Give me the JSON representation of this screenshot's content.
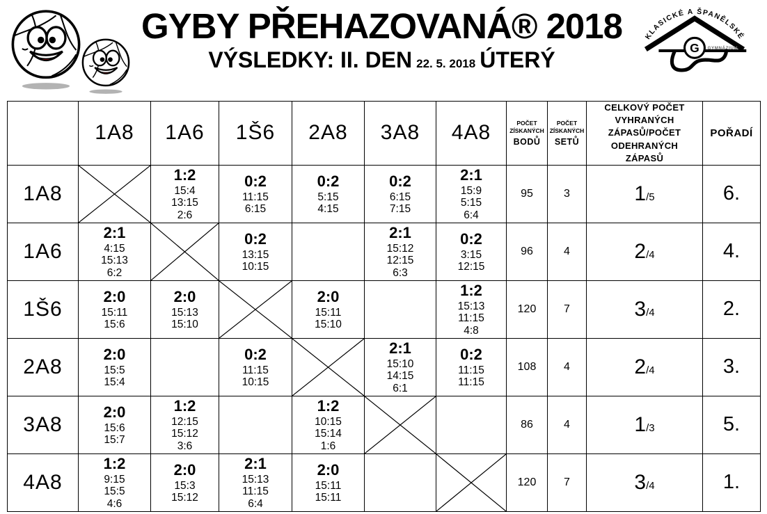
{
  "header": {
    "title": "GYBY PŘEHAZOVANÁ® 2018",
    "subtitle": {
      "results": "VÝSLEDKY: II. DEN",
      "date": "22. 5. 2018",
      "day": "ÚTERÝ"
    },
    "school_logo": {
      "arc_text": "KLASICKÉ A ŠPANĚLSKÉ",
      "monogram": "G",
      "name": "GYMNÁZIUM"
    }
  },
  "colors": {
    "ink": "#000000",
    "tongue_red": "#cc1111",
    "shadow_gray": "#b3b3b3"
  },
  "table": {
    "team_headers": [
      "1A8",
      "1A6",
      "1Š6",
      "2A8",
      "3A8",
      "4A8"
    ],
    "stat_headers": {
      "points_small": "POČET ZÍSKANÝCH",
      "points_big": "BODŮ",
      "sets_small": "POČET ZÍSKANÝCH",
      "sets_big": "SETŮ",
      "total": "CELKOVÝ POČET VYHRANÝCH ZÁPASŮ/POČET ODEHRANÝCH ZÁPASŮ",
      "rank": "POŘADÍ"
    },
    "rows": [
      {
        "team": "1A8",
        "cells": [
          {
            "type": "x"
          },
          {
            "type": "score",
            "r": "1:2",
            "sets": [
              "15:4",
              "13:15",
              "2:6"
            ]
          },
          {
            "type": "score",
            "r": "0:2",
            "sets": [
              "11:15",
              "6:15"
            ]
          },
          {
            "type": "score",
            "r": "0:2",
            "sets": [
              "5:15",
              "4:15"
            ]
          },
          {
            "type": "score",
            "r": "0:2",
            "sets": [
              "6:15",
              "7:15"
            ]
          },
          {
            "type": "score",
            "r": "2:1",
            "sets": [
              "15:9",
              "5:15",
              "6:4"
            ]
          }
        ],
        "points": "95",
        "sets": "3",
        "wins": "1",
        "played": "5",
        "rank": "6."
      },
      {
        "team": "1A6",
        "cells": [
          {
            "type": "score",
            "r": "2:1",
            "sets": [
              "4:15",
              "15:13",
              "6:2"
            ]
          },
          {
            "type": "x"
          },
          {
            "type": "score",
            "r": "0:2",
            "sets": [
              "13:15",
              "10:15"
            ]
          },
          {
            "type": "empty"
          },
          {
            "type": "score",
            "r": "2:1",
            "sets": [
              "15:12",
              "12:15",
              "6:3"
            ]
          },
          {
            "type": "score",
            "r": "0:2",
            "sets": [
              "3:15",
              "12:15"
            ]
          }
        ],
        "points": "96",
        "sets": "4",
        "wins": "2",
        "played": "4",
        "rank": "4."
      },
      {
        "team": "1Š6",
        "cells": [
          {
            "type": "score",
            "r": "2:0",
            "sets": [
              "15:11",
              "15:6"
            ]
          },
          {
            "type": "score",
            "r": "2:0",
            "sets": [
              "15:13",
              "15:10"
            ]
          },
          {
            "type": "x"
          },
          {
            "type": "score",
            "r": "2:0",
            "sets": [
              "15:11",
              "15:10"
            ]
          },
          {
            "type": "empty"
          },
          {
            "type": "score",
            "r": "1:2",
            "sets": [
              "15:13",
              "11:15",
              "4:8"
            ]
          }
        ],
        "points": "120",
        "sets": "7",
        "wins": "3",
        "played": "4",
        "rank": "2."
      },
      {
        "team": "2A8",
        "cells": [
          {
            "type": "score",
            "r": "2:0",
            "sets": [
              "15:5",
              "15:4"
            ]
          },
          {
            "type": "empty"
          },
          {
            "type": "score",
            "r": "0:2",
            "sets": [
              "11:15",
              "10:15"
            ]
          },
          {
            "type": "x"
          },
          {
            "type": "score",
            "r": "2:1",
            "sets": [
              "15:10",
              "14:15",
              "6:1"
            ]
          },
          {
            "type": "score",
            "r": "0:2",
            "sets": [
              "11:15",
              "11:15"
            ]
          }
        ],
        "points": "108",
        "sets": "4",
        "wins": "2",
        "played": "4",
        "rank": "3."
      },
      {
        "team": "3A8",
        "cells": [
          {
            "type": "score",
            "r": "2:0",
            "sets": [
              "15:6",
              "15:7"
            ]
          },
          {
            "type": "score",
            "r": "1:2",
            "sets": [
              "12:15",
              "15:12",
              "3:6"
            ]
          },
          {
            "type": "empty"
          },
          {
            "type": "score",
            "r": "1:2",
            "sets": [
              "10:15",
              "15:14",
              "1:6"
            ]
          },
          {
            "type": "x"
          },
          {
            "type": "empty"
          }
        ],
        "points": "86",
        "sets": "4",
        "wins": "1",
        "played": "3",
        "rank": "5."
      },
      {
        "team": "4A8",
        "cells": [
          {
            "type": "score",
            "r": "1:2",
            "sets": [
              "9:15",
              "15:5",
              "4:6"
            ]
          },
          {
            "type": "score",
            "r": "2:0",
            "sets": [
              "15:3",
              "15:12"
            ]
          },
          {
            "type": "score",
            "r": "2:1",
            "sets": [
              "15:13",
              "11:15",
              "6:4"
            ]
          },
          {
            "type": "score",
            "r": "2:0",
            "sets": [
              "15:11",
              "15:11"
            ]
          },
          {
            "type": "empty"
          },
          {
            "type": "x"
          }
        ],
        "points": "120",
        "sets": "7",
        "wins": "3",
        "played": "4",
        "rank": "1."
      }
    ]
  }
}
